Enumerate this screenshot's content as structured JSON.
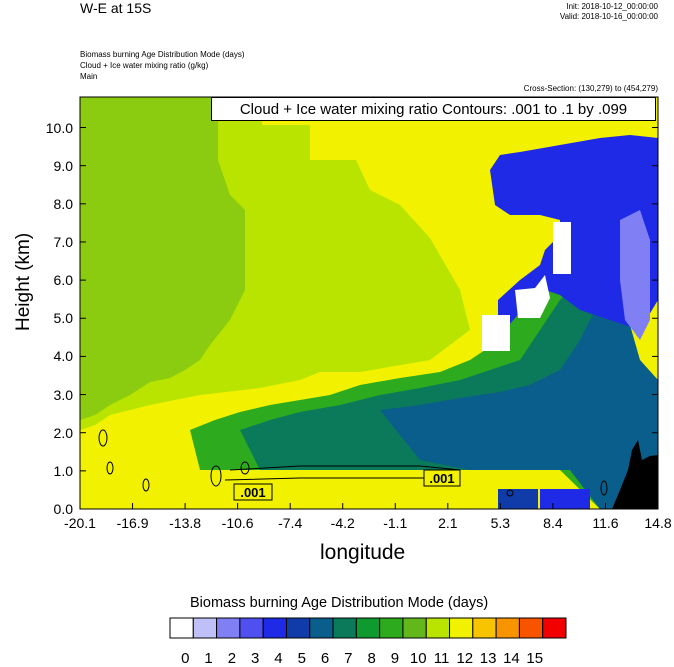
{
  "header": {
    "title": "W-E at 15S",
    "init": "Init: 2018-10-12_00:00:00",
    "valid": "Valid: 2018-10-16_00:00:00",
    "subtitle_lines": [
      "Biomass burning Age Distribution Mode   (days)",
      "Cloud + Ice water mixing ratio   (g/kg)",
      "Main"
    ],
    "cross_section": "Cross-Section: (130,279) to (454,279)"
  },
  "contour_info": "Cloud + Ice water mixing ratio Contours: .001 to .1 by .099",
  "chart_data": {
    "type": "heatmap",
    "xlabel": "longitude",
    "ylabel": "Height (km)",
    "xlim": [
      -20.1,
      14.8
    ],
    "ylim": [
      0.0,
      10.8
    ],
    "x_ticks": [
      "-20.1",
      "-16.9",
      "-13.8",
      "-10.6",
      "-7.4",
      "-4.2",
      "-1.1",
      "2.1",
      "5.3",
      "8.4",
      "11.6",
      "14.8"
    ],
    "y_ticks": [
      "0.0",
      "1.0",
      "2.0",
      "3.0",
      "4.0",
      "5.0",
      "6.0",
      "7.0",
      "8.0",
      "9.0",
      "10.0"
    ],
    "contour_labels": [
      ".001",
      ".001"
    ],
    "colorbar": {
      "title": "Biomass burning Age Distribution Mode  (days)",
      "labels": [
        "0",
        "1",
        "2",
        "3",
        "4",
        "5",
        "6",
        "7",
        "8",
        "9",
        "10",
        "11",
        "12",
        "13",
        "14",
        "15"
      ],
      "colors": [
        "#ffffff",
        "#c0c0f8",
        "#8080f4",
        "#5050f0",
        "#1e2ae6",
        "#0f3ca8",
        "#0a5e8c",
        "#0a7a5a",
        "#0e9a2e",
        "#2eaa1e",
        "#62b81a",
        "#b8e400",
        "#f2f200",
        "#f8c400",
        "#f89400",
        "#f85400",
        "#f20000"
      ]
    }
  }
}
